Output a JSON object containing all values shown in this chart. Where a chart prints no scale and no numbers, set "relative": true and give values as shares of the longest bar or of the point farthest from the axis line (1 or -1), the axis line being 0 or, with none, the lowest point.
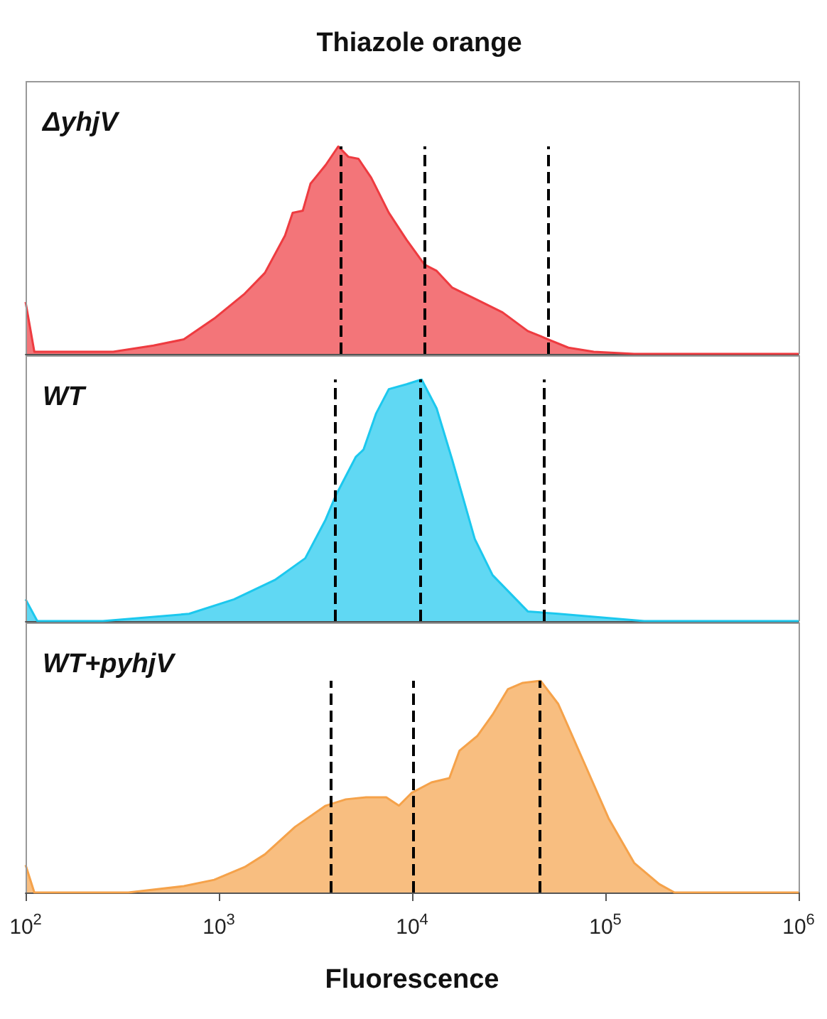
{
  "chart_data": [
    {
      "type": "area",
      "title": "Thiazole orange",
      "relative": true,
      "log": "x",
      "xlim": [
        100,
        1000000
      ],
      "tick_labels": false,
      "marker": "none",
      "line_style": "solid",
      "series": [
        {
          "name": "ΔyhjV",
          "color": "#ee3b40",
          "x": [
            100,
            111,
            284,
            459,
            659,
            946,
            1360,
            1730,
            2200,
            2410,
            2720,
            2980,
            3570,
            4150,
            4680,
            5280,
            6140,
            7580,
            9360,
            11600,
            13400,
            16100,
            21800,
            29400,
            39700,
            50600,
            64400,
            87100,
            141000,
            1000000
          ],
          "values": [
            0.25,
            0.01,
            0.01,
            0.04,
            0.07,
            0.17,
            0.29,
            0.39,
            0.57,
            0.68,
            0.69,
            0.82,
            0.91,
            1,
            0.95,
            0.94,
            0.85,
            0.68,
            0.55,
            0.43,
            0.4,
            0.32,
            0.26,
            0.2,
            0.11,
            0.07,
            0.03,
            0.01,
            0,
            0
          ]
        }
      ],
      "ref_lines": [
        {
          "axis": "x",
          "value": 4300,
          "color": "#000000",
          "line_style": "dashed"
        },
        {
          "axis": "x",
          "value": 11500,
          "color": "#000000",
          "line_style": "dashed"
        },
        {
          "axis": "x",
          "value": 51000,
          "color": "#000000",
          "line_style": "dashed"
        }
      ]
    },
    {
      "type": "area",
      "relative": true,
      "log": "x",
      "xlim": [
        100,
        1000000
      ],
      "tick_labels": false,
      "marker": "none",
      "line_style": "solid",
      "series": [
        {
          "name": "WT",
          "color": "#1cc8ee",
          "x": [
            100,
            115,
            251,
            702,
            1200,
            1950,
            2800,
            3570,
            4030,
            5120,
            5610,
            6520,
            7580,
            9360,
            11200,
            13400,
            16100,
            21100,
            26100,
            39700,
            57100,
            159000,
            1000000
          ],
          "values": [
            0.09,
            0,
            0,
            0.03,
            0.09,
            0.17,
            0.26,
            0.42,
            0.52,
            0.68,
            0.71,
            0.86,
            0.96,
            0.98,
            1,
            0.88,
            0.67,
            0.34,
            0.19,
            0.04,
            0.03,
            0,
            0
          ]
        }
      ],
      "ref_lines": [
        {
          "axis": "x",
          "value": 4000,
          "color": "#000000",
          "line_style": "dashed"
        },
        {
          "axis": "x",
          "value": 11000,
          "color": "#000000",
          "line_style": "dashed"
        },
        {
          "axis": "x",
          "value": 48000,
          "color": "#000000",
          "line_style": "dashed"
        }
      ]
    },
    {
      "type": "area",
      "xlabel": "Fluorescence",
      "relative": true,
      "log": "x",
      "xlim": [
        100,
        1000000
      ],
      "tick_labels": "x",
      "marker": "none",
      "line_style": "solid",
      "xticks": [
        {
          "value": 100,
          "label": "10$^{2}$"
        },
        {
          "value": 1000,
          "label": "10$^{3}$"
        },
        {
          "value": 10000,
          "label": "10$^{4}$"
        },
        {
          "value": 100000,
          "label": "10$^{5}$"
        },
        {
          "value": 1000000,
          "label": "10$^{6}$"
        }
      ],
      "series": [
        {
          "name": "WT+pyhjV",
          "color": "#f5a24a",
          "x": [
            100,
            111,
            340,
            659,
            946,
            1360,
            1730,
            2480,
            3570,
            4540,
            5780,
            7350,
            8550,
            9930,
            12600,
            15600,
            17600,
            21800,
            26100,
            31300,
            37400,
            46200,
            57100,
            77100,
            104000,
            141000,
            190000,
            228000,
            1000000
          ],
          "values": [
            0.13,
            0,
            0,
            0.03,
            0.06,
            0.12,
            0.18,
            0.31,
            0.41,
            0.44,
            0.45,
            0.45,
            0.41,
            0.47,
            0.52,
            0.54,
            0.67,
            0.74,
            0.84,
            0.96,
            0.99,
            1,
            0.89,
            0.62,
            0.35,
            0.14,
            0.04,
            0,
            0
          ]
        }
      ],
      "ref_lines": [
        {
          "axis": "x",
          "value": 3800,
          "color": "#000000",
          "line_style": "dashed"
        },
        {
          "axis": "x",
          "value": 10200,
          "color": "#000000",
          "line_style": "dashed"
        },
        {
          "axis": "x",
          "value": 45700,
          "color": "#000000",
          "line_style": "dashed"
        }
      ]
    }
  ]
}
